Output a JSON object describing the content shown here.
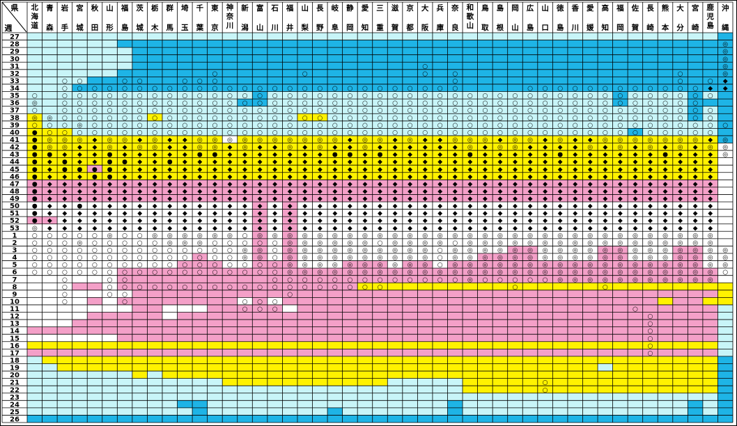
{
  "chart_data": {
    "type": "heatmap",
    "corner_label_top": "県",
    "corner_label_bottom": "週",
    "prefectures": [
      "北海道",
      "青森",
      "岩手",
      "宮城",
      "秋田",
      "山形",
      "福島",
      "茨城",
      "栃木",
      "群馬",
      "埼玉",
      "千葉",
      "東京",
      "神奈川",
      "新潟",
      "富山",
      "石川",
      "福井",
      "山梨",
      "長野",
      "岐阜",
      "静岡",
      "愛知",
      "三重",
      "滋賀",
      "京都",
      "大阪",
      "兵庫",
      "奈良",
      "和歌山",
      "鳥取",
      "島根",
      "岡山",
      "広島",
      "山口",
      "徳島",
      "香川",
      "愛媛",
      "高知",
      "福岡",
      "佐賀",
      "長崎",
      "熊本",
      "大分",
      "宮崎",
      "鹿児島",
      "沖縄"
    ],
    "weeks": [
      "27",
      "28",
      "29",
      "30",
      "31",
      "32",
      "33",
      "34",
      "35",
      "36",
      "37",
      "38",
      "39",
      "40",
      "41",
      "42",
      "43",
      "44",
      "45",
      "46",
      "47",
      "48",
      "49",
      "50",
      "51",
      "52",
      "53",
      "1",
      "2",
      "3",
      "4",
      "5",
      "6",
      "7",
      "8",
      "9",
      "10",
      "11",
      "12",
      "13",
      "14",
      "15",
      "16",
      "17",
      "18",
      "19",
      "20",
      "21",
      "22",
      "23",
      "24",
      "25",
      "26"
    ],
    "levels": [
      "LLLLLLLLLLLLLLLLLLLLLLLLLLLLLLLLLLLLLLLLLLLLLLB",
      "LLLLLLBBBBBBBBBBBBBBBBBBBBBBBBBBBBBBBBBBBBBBBBB",
      "LLLLLLLBBBBBBBBBBBBBBBBBBBBBBBBBBBBBBBBBBBBBBBB",
      "LLLLLLLBBBBBBBBBBBBBBBBBBBBBBBBBBBBBBBBBBBBBBBB",
      "LLLLLLLBBBBBBBBBBBBBBBBBBBBBBBBBBBBBBBBBBBBBBBB",
      "LLLLLLBBBBBBBBBBBBBBBBBBBBBBBBBBBBBBBBBBBBBBBBB",
      "LLLLBBBBBBBBBBBBBBBBBBBBBBBBBBBBBBBBBBBBBBBBBBB",
      "LLLBBBBBBBBBBBBBBBBBBBBBBBBBBBBBBBBBBBBBBBBBBBB",
      "LLLLLLLLLLLLLLLBLLLLLLLLLLLLLLLLLLLLLLLBLLLLBLB",
      "LLLLLLLLLLLLLLBBLLLLLLLLLLLLLLLLLLLLLLLBLLLLBBB",
      "LLLLLLLLLLLLLLLLLLLLLLLLLLLLLLLLLLLLLLLLLLLLBLB",
      "YLLLLLLLYLLLLLLLLLYYLLLLLLLLLLLLLLLLLLLLLLLLBLB",
      "YLLLLLLLLLLLLLLLLLLLLLLLLLLLLLLLLLLLLLLLLLLLLLB",
      "YYYLLLLLLLLLLLLLLLLLLLLLLLLLLLLLLLLLLLLLBLLLLLB",
      "YYYYYYYYYYYYYWYYYYYYYYYYYYYYYYYYYYYYYYYYYYYYYYB",
      "YYYYYYYYYYYYYYYYYYYYYYYYYYYYYYYYYYYYYYYYYYYYYYW",
      "YYYYYYYYYYYYYYYYYYYYYYYYYYYYYYYYYYYYYYYYYYYYYYW",
      "YYYYYYYYYYYYYYYYYYYYYYYYYYYYYYYYYYYYYYYYYYYYYYW",
      "YYYYPYYYYYYYYYYYYYYYYYYYYYYYYYYYYYYYYYYYYYYYYYW",
      "YYYYYYYYYYYYYYYYYYYYYYYYYYYYYYYYYYYYYYYYYYYYYYW",
      "PPPPPPPPPPPPPPPPPPPPPPPPPPPPPPPPPPPPPPPPPPPPPPW",
      "PPPPPPPPPPPPPPPPPPPPPPPPPPPPPPPPPPPPPPPPPPPPPPW",
      "PPPPPPPPPPPPPPPPPPPPPPPPPPPPPPPPPPPPPPPPPPPPPPW",
      "WWWWWWWWWWWWWWWPWPWWWWWWWWWWWWWWWWWWWWWWWWWWWWW",
      "WWWWWWWWWWWWWWWPWPWWWWWWWWWWWWWWWWWWWWWWWWWWWWW",
      "PPWWWWWWWWWWWWWPWPWWWWWWWWWWWWWWWWWWWWWWWWWWWWW",
      "WWWWWWWWWWWWWWWPWPWWWWWWWWWWWWWWWWWWWWWWWWWWWWW",
      "WWWWWWWWWWWWWWWPWPWWWWWWWWWWWWWWWWWWWWWWWWWWWWW",
      "WWWWWWWWWWWWWWWPWPWWWWWWWWWWWWWWWWWWWWWWWWWWWWW",
      "WWWWWWWWWWWWWWWPWPWWWWWWWWWWWWWWPPWWWWPPWWWPPWW",
      "WWWWWWWWWWWPWWWPWPWWWWWWWWWWWWPPPPWWWWPPWWWPPWW",
      "WWWWWWWWWWPPPWWPPPWWWPPPWPPWPPPPPPPPPPPPPPPPPWW",
      "WWWWWWPPPPPPPPPPPPPPPPPPPPPPPPPPPPPPPPPPPPPPPPW",
      "WWWWWWPPPPPPPPPPPPPPPPPPPPPPPPPPPPPPPPPPPPPPPPW",
      "WWWPPWPPPPPPPPPPPPPPPPYYYYYYYYYYYYYYYYYYYYYYYYY",
      "WWWWWWWPPPPPPPPPPPPPPPPPPPPPPPPPPPPPPPPPPPPPPPY",
      "WWWWPWPPPPPPPPWPWPPPPPPPPPPPPPPPPPPPPPPPPPYPPYY",
      "WWWWWWWPPWWWPPPPPWPPPPPPPPPPPPPPPPPPPPPPPPPPPPL",
      "WWWWPPPPPWPPPPPPPPPPPPPPPPPPPPPPPPPPPPPPPPPPPPL",
      "WWWPPPPPPPPPPPPPPPPPPPPPPPPPPPPPPPPPPPPPPPPPPPL",
      "PPPPPPPPPPPPPPPPPPPPPPPPPPPPPPPPPPPPPPPPPPPPPPL",
      "WWWWWWPPPPPPPPPPPPPPPPPPPPPPPPPPPPPPPPPPPPPPPPL",
      "YYYYYYYYYYYYYYYYYYYYYYYYYYYYYYYYYYYYYYYYYYYYYYL",
      "PPPPPPPPPPPPPPPPPPPPPPPPPPPPPPPPPPPPPPPPPPPPPPL",
      "LYYYYYYYYYYYYYYYYYYYYYYYYYYYYYYYYYYYYYYYYYYYYYB",
      "LLYYYYYYYYYYYYYYYYYYYYYYYYYYYYYYYYYYYYLYYYYYYYB",
      "LLLLLLLYLYYYYYYYYYYYYYYYYYYYYYYYYYYYYYYYYYYYYYB",
      "LLLLLLLLLLLLLYYYYYYYYYYYLLLLLYYYYYYYYYYYYYYYYYB",
      "LLLLLLLLLLLLLLLLLLLLLLLLLLLLLYYYYYYYYYYYYYYYYYB",
      "LLLLLLLLLLLLLLLLLLLLLLLLLLLLLLLLLLLLLLLLLLLLLLB",
      "LLLLLLLLLLBBLLLLLLLLLLLLLLLLBLLLLLLLLLLLLLLLBLB",
      "LLLLLLLLLLLBLLLLLLLLBLLLLLLLBLLLLLLLLLLLLLLLBLB",
      "BBBBBBBBBBBBBBBBBBBBBBBBBBBBBBBBBBBBBBBBBBBBBBB"
    ],
    "level_colors": {
      "B": "#1eb4e6",
      "L": "#c8f5f8",
      "Y": "#fff200",
      "P": "#f4a0c8",
      "W": "#ffffff"
    },
    "marker_glyphs": {
      "o": "○",
      "d": "◎",
      "k": "◆",
      "c": "●"
    },
    "markers": [
      "...............................................",
      "..............................................d",
      "..............................................d",
      "..............................................d",
      "..........................o...................d",
      "............o.....o.......o.o..............o..d",
      "..oo..oo..ooo...............o..............o.ok",
      "..ooooooooooooooooooooooooooo....ooooooooooookk",
      "o.oooooooooooooooooooooooooooooooooooooooooooo.",
      "d.ooooooooooooooooooooooooooooooooooooooooooo..",
      "o.oooooooooooooooooooooooooooooooooooooooooooo.",
      "ddoooooooooooooooooooooooooooooooooooooooooooo.",
      "ooodooooooooooooooooooooooooooooooooooooooooooo",
      "cooooooooooooooooooooooooooooooooooooooooooooo.",
      "cdddkddkdkkddddddddddkddkdkkdddkddkdkkdddddddkd",
      "cddkkdkddkkddkdkkdkdkkdkkkkkkdkddkkkkdkdkdkdkdd",
      "cckkkckkkkkcckkkkkkkcckckkkkkckkkkkckkkkkkckkkd",
      "ckckkcckkckkkkkkkkkkkkkkkkkkkkkkkkkkkkkkkkkkkk.",
      "ckcccckkkkkkkkkkkkkkkkkkkkkkkkkkkkkkkkkkkkkkkk.",
      "ckkkcckkkkkkkkkkkkkkkkkkkkkkkkkkkkkkkkkkkkkkkk.",
      "ckkkkkkkkkkkkkkkkkkkkkkkkkkkkkkkkkkkkkkkkkkkkk.",
      "ckkkkkkkkkkkkkkkkkkkkkkkkkkkkkkkkkkkkkkkkkkkkk.",
      "ckkkkkkkkkkkkkkkkkkkkkkkkkkkkkkkkkkkkkkkkkkkkk.",
      "ckkckkkkkkkkkkkkkkkkkkkkkkkkkkkkkkkkkkkkkkkkkk.",
      "ckkkkkkkkkkkkkkkkkkkkkkkkkkkkkkkkkkkkkkkkkkkkk.",
      "ckkkkkkkkkkkkkkkkkkkkkkkkkkkkkkkkkkkkkkkkkkkkk.",
      "dkkkkkkkkkkkkkkkkkkkkkkkkkkkkkkkkkkkkkkkkkkkkk.",
      "ooooodooddddddoddddddddddddddddddddddddddddddd.",
      "ooodooooodddoooooddddddoddddoddddddddddddddddd.",
      "ooooooooooooooddoddddddddddoddddddddddddddddddd",
      "ooooooooooooooddoddddddddddoddddddddddddddddddd",
      "oooooooooooooooooddddddddddoddddddddddddddddddd",
      "ooooooooooooooooodddddddddddddddddddddddddddddo",
      "..o..oo.........ooooooooooooodoooooddddddddddd.",
      "..o..ooooooooooooooooooo........o.....o........",
      "..o..oo..........o.............................",
      "..o...o.......ooo..............................",
      "..............ooo.......................o......",
      ".........................................o.....",
      ".........................................o.....",
      ".........................................o.....",
      ".........................................o.....",
      ".........................................o.....",
      ".........................................o.....",
      "...............................................",
      "...............................................",
      "...............................................",
      "..................................o............",
      "..................................o............",
      "...............................................",
      "...............................................",
      "...............................................",
      "..............................................."
    ]
  }
}
